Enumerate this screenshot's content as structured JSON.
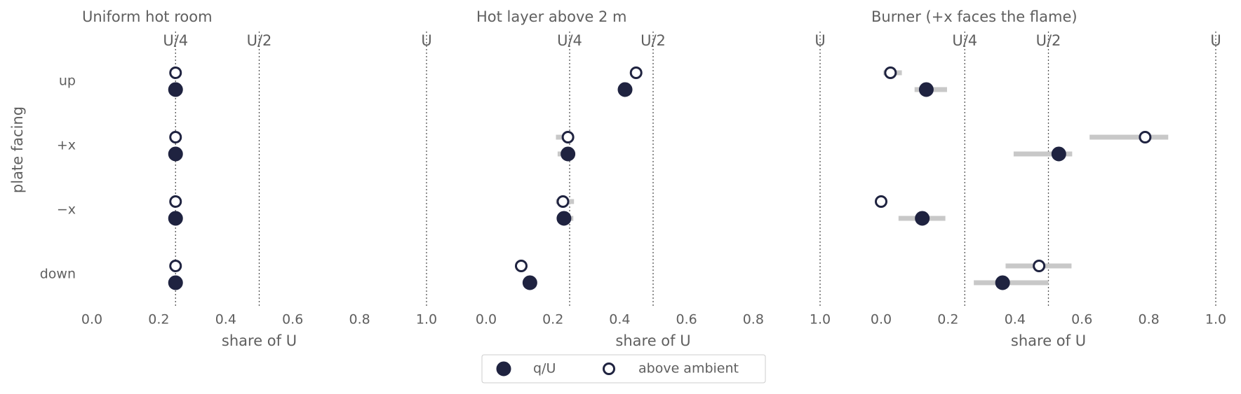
{
  "chart_data": [
    {
      "type": "dot",
      "title": "Uniform hot room",
      "ylabel": "plate facing",
      "xlabel": "share of U",
      "categories": [
        "up",
        "+x",
        "−x",
        "down"
      ],
      "xlim": [
        0,
        1
      ],
      "xticks": [
        {
          "value": 0,
          "label": "0.0"
        },
        {
          "value": 0.2,
          "label": "0.2"
        },
        {
          "value": 0.4,
          "label": "0.4"
        },
        {
          "value": 0.6,
          "label": "0.6"
        },
        {
          "value": 0.8,
          "label": "0.8"
        },
        {
          "value": 1,
          "label": "1.0"
        }
      ],
      "ref_lines": [
        {
          "value": 0.25,
          "label": "U/4"
        },
        {
          "value": 0.5,
          "label": "U/2"
        },
        {
          "value": 1,
          "label": "U"
        }
      ],
      "series": [
        {
          "name": "q/U",
          "color": "#1f2340",
          "marker": "filled",
          "values": [
            0.25,
            0.25,
            0.25,
            0.25
          ],
          "lo": [
            null,
            null,
            null,
            null
          ],
          "hi": [
            null,
            null,
            null,
            null
          ]
        },
        {
          "name": "above ambient",
          "color": "#1f2340",
          "marker": "open",
          "values": [
            0.25,
            0.25,
            0.25,
            0.25
          ],
          "lo": [
            null,
            null,
            null,
            null
          ],
          "hi": [
            null,
            null,
            null,
            null
          ]
        }
      ]
    },
    {
      "type": "dot",
      "title": "Hot layer above 2 m",
      "xlabel": "share of U",
      "xlim": [
        0,
        1
      ],
      "xticks": [
        {
          "value": 0,
          "label": "0.0"
        },
        {
          "value": 0.2,
          "label": "0.2"
        },
        {
          "value": 0.4,
          "label": "0.4"
        },
        {
          "value": 0.6,
          "label": "0.6"
        },
        {
          "value": 0.8,
          "label": "0.8"
        },
        {
          "value": 1,
          "label": "1.0"
        }
      ],
      "ref_lines": [
        {
          "value": 0.25,
          "label": "U/4"
        },
        {
          "value": 0.5,
          "label": "U/2"
        },
        {
          "value": 1,
          "label": "U"
        }
      ],
      "series": [
        {
          "color": "#1f2340",
          "marker": "filled",
          "values": [
            0.416,
            0.245,
            0.233,
            0.131
          ],
          "lo": [
            null,
            0.214,
            0.214,
            null
          ],
          "hi": [
            null,
            0.261,
            0.261,
            null
          ]
        },
        {
          "color": "#1f2340",
          "marker": "open",
          "values": [
            0.449,
            0.245,
            0.23,
            0.105
          ],
          "lo": [
            null,
            0.209,
            0.209,
            null
          ],
          "hi": [
            null,
            0.261,
            0.263,
            null
          ]
        }
      ]
    },
    {
      "type": "dot",
      "title": "Burner (+x faces the flame)",
      "xlabel": "share of U",
      "xlim": [
        0,
        1
      ],
      "xticks": [
        {
          "value": 0,
          "label": "0.0"
        },
        {
          "value": 0.2,
          "label": "0.2"
        },
        {
          "value": 0.4,
          "label": "0.4"
        },
        {
          "value": 0.6,
          "label": "0.6"
        },
        {
          "value": 0.8,
          "label": "0.8"
        },
        {
          "value": 1,
          "label": "1.0"
        }
      ],
      "ref_lines": [
        {
          "value": 0.25,
          "label": "U/4"
        },
        {
          "value": 0.5,
          "label": "U/2"
        },
        {
          "value": 1,
          "label": "U"
        }
      ],
      "series": [
        {
          "color": "#1f2340",
          "marker": "filled",
          "values": [
            0.135,
            0.531,
            0.123,
            0.363
          ],
          "lo": [
            0.1,
            0.396,
            0.052,
            0.277
          ],
          "hi": [
            0.197,
            0.571,
            0.192,
            0.5
          ]
        },
        {
          "color": "#1f2340",
          "marker": "open",
          "values": [
            0.028,
            0.789,
            0.0,
            0.472
          ],
          "lo": [
            0.007,
            0.623,
            null,
            0.372
          ],
          "hi": [
            0.062,
            0.858,
            null,
            0.569
          ]
        }
      ]
    }
  ]
}
